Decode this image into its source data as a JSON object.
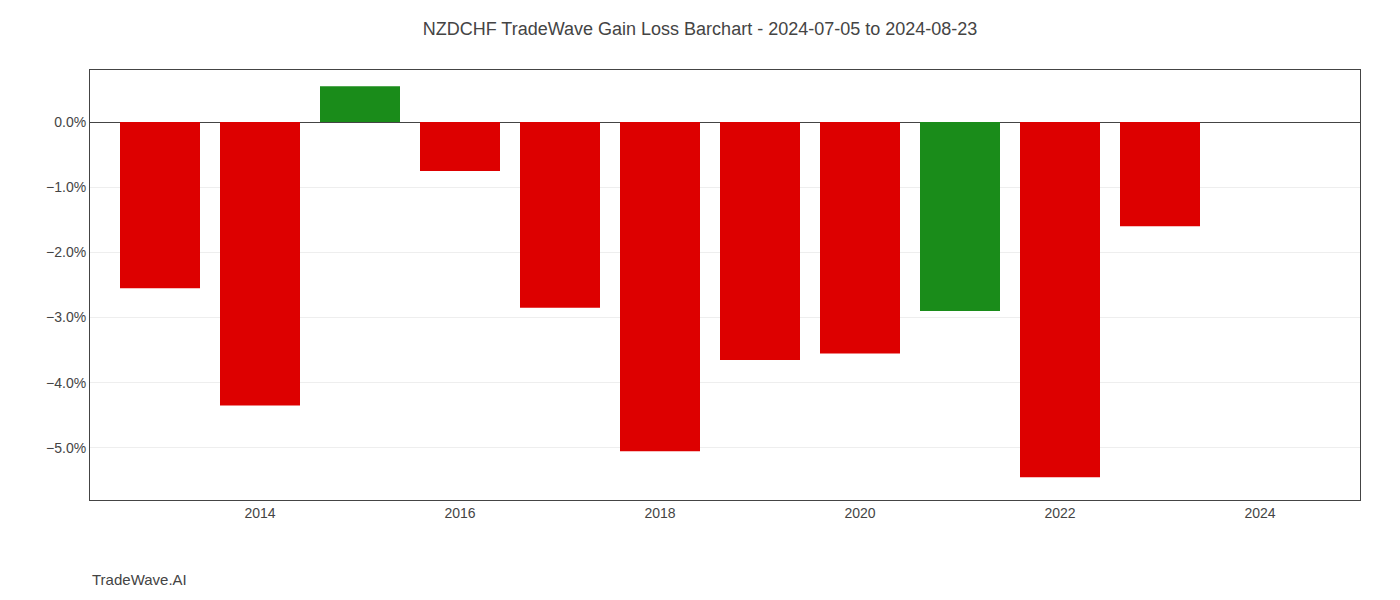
{
  "chart_data": {
    "type": "bar",
    "title": "NZDCHF TradeWave Gain Loss Barchart - 2024-07-05 to 2024-08-23",
    "x": [
      2013,
      2014,
      2015,
      2016,
      2017,
      2018,
      2019,
      2020,
      2021,
      2022,
      2023
    ],
    "values": [
      -2.55,
      -4.35,
      0.55,
      -0.75,
      -2.85,
      -5.05,
      -3.65,
      -3.55,
      -2.9,
      -5.45,
      -1.6
    ],
    "colors": [
      "#dd0000",
      "#dd0000",
      "#1a8c1a",
      "#dd0000",
      "#dd0000",
      "#dd0000",
      "#dd0000",
      "#dd0000",
      "#1a8c1a",
      "#dd0000",
      "#dd0000"
    ],
    "xlim": [
      2012.3,
      2025.0
    ],
    "xticks": [
      2014,
      2016,
      2018,
      2020,
      2022,
      2024
    ],
    "ylim": [
      -5.8,
      0.8
    ],
    "yticks": [
      {
        "value": 0.0,
        "label": "0.0%"
      },
      {
        "value": -1.0,
        "label": "−1.0%"
      },
      {
        "value": -2.0,
        "label": "−2.0%"
      },
      {
        "value": -3.0,
        "label": "−3.0%"
      },
      {
        "value": -4.0,
        "label": "−4.0%"
      },
      {
        "value": -5.0,
        "label": "−5.0%"
      }
    ],
    "grid": true,
    "annotations": [
      "TradeWave.AI"
    ]
  }
}
